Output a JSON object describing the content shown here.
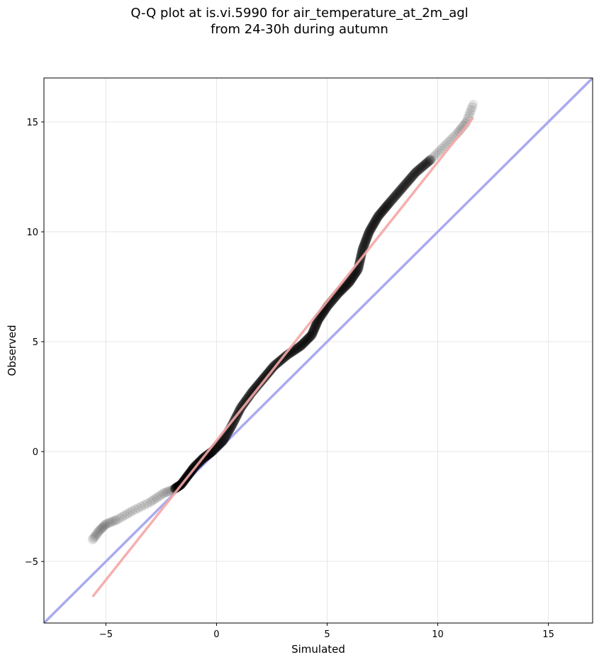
{
  "chart_data": {
    "type": "scatter",
    "title_line1": "Q-Q plot at is.vi.5990 for air_temperature_at_2m_agl",
    "title_line2": "from 24-30h during autumn",
    "xlabel": "Simulated",
    "ylabel": "Observed",
    "xlim": [
      -7.8,
      17.0
    ],
    "ylim": [
      -7.8,
      17.0
    ],
    "x_ticks": [
      -5,
      0,
      5,
      10,
      15
    ],
    "y_ticks": [
      -5,
      0,
      5,
      10,
      15
    ],
    "x_tick_labels": [
      "−5",
      "0",
      "5",
      "10",
      "15"
    ],
    "y_tick_labels": [
      "−5",
      "0",
      "5",
      "10",
      "15"
    ],
    "grid": true,
    "identity_line": {
      "color": "#aaaaf0",
      "from": [
        -7.8,
        -7.8
      ],
      "to": [
        17.0,
        17.0
      ]
    },
    "fit_line": {
      "color": "#f4a6a6",
      "from": [
        -5.6,
        -6.6
      ],
      "to": [
        11.6,
        15.2
      ]
    },
    "point_color": "#000000",
    "quantile_curve": [
      [
        -5.6,
        -4.0
      ],
      [
        -5.3,
        -3.6
      ],
      [
        -5.0,
        -3.3
      ],
      [
        -4.5,
        -3.1
      ],
      [
        -3.8,
        -2.7
      ],
      [
        -3.0,
        -2.3
      ],
      [
        -2.4,
        -1.9
      ],
      [
        -1.9,
        -1.7
      ],
      [
        -1.6,
        -1.5
      ],
      [
        -1.3,
        -1.1
      ],
      [
        -1.0,
        -0.7
      ],
      [
        -0.6,
        -0.3
      ],
      [
        -0.2,
        0.0
      ],
      [
        0.3,
        0.5
      ],
      [
        0.7,
        1.2
      ],
      [
        1.1,
        2.0
      ],
      [
        1.6,
        2.7
      ],
      [
        2.1,
        3.3
      ],
      [
        2.6,
        3.9
      ],
      [
        3.2,
        4.4
      ],
      [
        3.8,
        4.8
      ],
      [
        4.3,
        5.3
      ],
      [
        4.6,
        6.0
      ],
      [
        5.0,
        6.6
      ],
      [
        5.5,
        7.2
      ],
      [
        6.0,
        7.7
      ],
      [
        6.4,
        8.3
      ],
      [
        6.6,
        9.2
      ],
      [
        6.9,
        10.0
      ],
      [
        7.3,
        10.7
      ],
      [
        7.8,
        11.3
      ],
      [
        8.4,
        12.0
      ],
      [
        9.0,
        12.7
      ],
      [
        9.7,
        13.3
      ],
      [
        10.3,
        13.9
      ],
      [
        10.9,
        14.5
      ],
      [
        11.3,
        15.0
      ],
      [
        11.6,
        15.8
      ]
    ]
  }
}
